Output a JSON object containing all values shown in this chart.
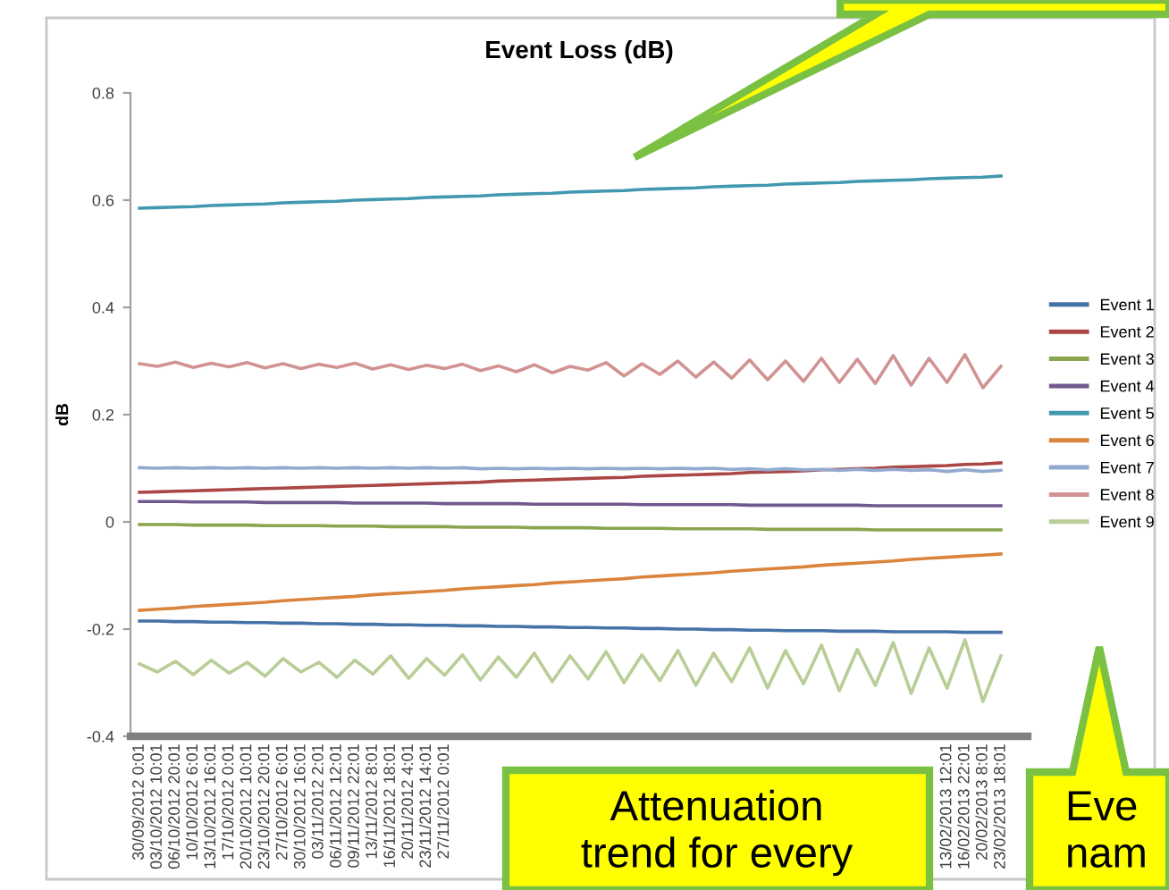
{
  "chart_data": {
    "type": "line",
    "title": "Event Loss (dB)",
    "ylabel": "dB",
    "categories": [
      "30/09/2012 0:01",
      "03/10/2012 10:01",
      "06/10/2012 20:01",
      "10/10/2012 6:01",
      "13/10/2012 16:01",
      "17/10/2012 0:01",
      "20/10/2012 10:01",
      "23/10/2012 20:01",
      "27/10/2012 6:01",
      "30/10/2012 16:01",
      "03/11/2012 2:01",
      "06/11/2012 12:01",
      "09/11/2012 22:01",
      "13/11/2012 8:01",
      "16/11/2012 18:01",
      "20/11/2012 4:01",
      "23/11/2012 14:01",
      "27/11/2012 0:01",
      null,
      null,
      null,
      null,
      null,
      null,
      null,
      null,
      null,
      null,
      null,
      null,
      null,
      null,
      null,
      null,
      null,
      null,
      null,
      null,
      null,
      null,
      null,
      null,
      null,
      null,
      null,
      "13/02/2013 12:01",
      "16/02/2013 22:01",
      "20/02/2013 8:01",
      "23/02/2013 18:01"
    ],
    "ylim": [
      -0.4,
      0.8
    ],
    "yticks": [
      -0.4,
      -0.2,
      0,
      0.2,
      0.4,
      0.6,
      0.8
    ],
    "grid": false,
    "legend": "right",
    "marker": "none",
    "line_style": "solid",
    "series": [
      {
        "name": "Event 1",
        "color": "#4572a7",
        "values": [
          -0.185,
          -0.185,
          -0.186,
          -0.186,
          -0.187,
          -0.187,
          -0.188,
          -0.188,
          -0.189,
          -0.189,
          -0.19,
          -0.19,
          -0.191,
          -0.191,
          -0.192,
          -0.192,
          -0.193,
          -0.193,
          -0.194,
          -0.194,
          -0.195,
          -0.195,
          -0.196,
          -0.196,
          -0.197,
          -0.197,
          -0.198,
          -0.198,
          -0.199,
          -0.199,
          -0.2,
          -0.2,
          -0.201,
          -0.201,
          -0.202,
          -0.202,
          -0.203,
          -0.203,
          -0.203,
          -0.204,
          -0.204,
          -0.204,
          -0.205,
          -0.205,
          -0.205,
          -0.205,
          -0.206,
          -0.206,
          -0.206
        ]
      },
      {
        "name": "Event 2",
        "color": "#aa4643",
        "values": [
          0.055,
          0.056,
          0.057,
          0.058,
          0.059,
          0.06,
          0.061,
          0.062,
          0.063,
          0.064,
          0.065,
          0.066,
          0.067,
          0.068,
          0.069,
          0.07,
          0.071,
          0.072,
          0.073,
          0.074,
          0.076,
          0.077,
          0.078,
          0.079,
          0.08,
          0.081,
          0.082,
          0.083,
          0.085,
          0.086,
          0.087,
          0.088,
          0.089,
          0.09,
          0.092,
          0.093,
          0.094,
          0.095,
          0.097,
          0.098,
          0.099,
          0.1,
          0.102,
          0.103,
          0.104,
          0.105,
          0.107,
          0.108,
          0.11
        ]
      },
      {
        "name": "Event 3",
        "color": "#89a54e",
        "values": [
          -0.005,
          -0.005,
          -0.005,
          -0.006,
          -0.006,
          -0.006,
          -0.006,
          -0.007,
          -0.007,
          -0.007,
          -0.007,
          -0.008,
          -0.008,
          -0.008,
          -0.009,
          -0.009,
          -0.009,
          -0.009,
          -0.01,
          -0.01,
          -0.01,
          -0.01,
          -0.011,
          -0.011,
          -0.011,
          -0.011,
          -0.012,
          -0.012,
          -0.012,
          -0.012,
          -0.013,
          -0.013,
          -0.013,
          -0.013,
          -0.013,
          -0.014,
          -0.014,
          -0.014,
          -0.014,
          -0.014,
          -0.014,
          -0.015,
          -0.015,
          -0.015,
          -0.015,
          -0.015,
          -0.015,
          -0.015,
          -0.015
        ]
      },
      {
        "name": "Event 4",
        "color": "#71588f",
        "values": [
          0.038,
          0.038,
          0.038,
          0.037,
          0.037,
          0.037,
          0.037,
          0.036,
          0.036,
          0.036,
          0.036,
          0.036,
          0.035,
          0.035,
          0.035,
          0.035,
          0.035,
          0.034,
          0.034,
          0.034,
          0.034,
          0.034,
          0.033,
          0.033,
          0.033,
          0.033,
          0.033,
          0.033,
          0.032,
          0.032,
          0.032,
          0.032,
          0.032,
          0.032,
          0.031,
          0.031,
          0.031,
          0.031,
          0.031,
          0.031,
          0.031,
          0.03,
          0.03,
          0.03,
          0.03,
          0.03,
          0.03,
          0.03,
          0.03
        ]
      },
      {
        "name": "Event 5",
        "color": "#4198af",
        "values": [
          0.585,
          0.586,
          0.587,
          0.588,
          0.59,
          0.591,
          0.592,
          0.593,
          0.595,
          0.596,
          0.597,
          0.598,
          0.6,
          0.601,
          0.602,
          0.603,
          0.605,
          0.606,
          0.607,
          0.608,
          0.61,
          0.611,
          0.612,
          0.613,
          0.615,
          0.616,
          0.617,
          0.618,
          0.62,
          0.621,
          0.622,
          0.623,
          0.625,
          0.626,
          0.627,
          0.628,
          0.63,
          0.631,
          0.632,
          0.633,
          0.635,
          0.636,
          0.637,
          0.638,
          0.64,
          0.641,
          0.642,
          0.643,
          0.645
        ]
      },
      {
        "name": "Event 6",
        "color": "#db843d",
        "values": [
          -0.165,
          -0.163,
          -0.161,
          -0.158,
          -0.156,
          -0.154,
          -0.152,
          -0.15,
          -0.147,
          -0.145,
          -0.143,
          -0.141,
          -0.139,
          -0.136,
          -0.134,
          -0.132,
          -0.13,
          -0.128,
          -0.125,
          -0.123,
          -0.121,
          -0.119,
          -0.117,
          -0.114,
          -0.112,
          -0.11,
          -0.108,
          -0.106,
          -0.103,
          -0.101,
          -0.099,
          -0.097,
          -0.095,
          -0.092,
          -0.09,
          -0.088,
          -0.086,
          -0.084,
          -0.081,
          -0.079,
          -0.077,
          -0.075,
          -0.073,
          -0.07,
          -0.068,
          -0.066,
          -0.064,
          -0.062,
          -0.06
        ]
      },
      {
        "name": "Event 7",
        "color": "#93a9cf",
        "values": [
          0.101,
          0.1,
          0.101,
          0.1,
          0.101,
          0.1,
          0.101,
          0.1,
          0.101,
          0.1,
          0.101,
          0.1,
          0.101,
          0.1,
          0.101,
          0.1,
          0.101,
          0.1,
          0.101,
          0.099,
          0.1,
          0.099,
          0.1,
          0.099,
          0.1,
          0.099,
          0.1,
          0.099,
          0.1,
          0.099,
          0.1,
          0.099,
          0.1,
          0.098,
          0.099,
          0.097,
          0.099,
          0.097,
          0.098,
          0.096,
          0.098,
          0.096,
          0.098,
          0.096,
          0.097,
          0.094,
          0.097,
          0.094,
          0.096
        ]
      },
      {
        "name": "Event 8",
        "color": "#d19392",
        "values": [
          0.295,
          0.29,
          0.298,
          0.288,
          0.296,
          0.289,
          0.297,
          0.287,
          0.295,
          0.286,
          0.294,
          0.288,
          0.296,
          0.285,
          0.293,
          0.284,
          0.292,
          0.286,
          0.294,
          0.282,
          0.291,
          0.28,
          0.293,
          0.278,
          0.29,
          0.283,
          0.297,
          0.272,
          0.295,
          0.275,
          0.3,
          0.27,
          0.298,
          0.268,
          0.302,
          0.265,
          0.3,
          0.262,
          0.305,
          0.26,
          0.303,
          0.258,
          0.31,
          0.255,
          0.305,
          0.26,
          0.312,
          0.25,
          0.29
        ]
      },
      {
        "name": "Event 9",
        "color": "#b9cd96",
        "values": [
          -0.265,
          -0.28,
          -0.26,
          -0.285,
          -0.258,
          -0.282,
          -0.262,
          -0.288,
          -0.255,
          -0.28,
          -0.262,
          -0.29,
          -0.258,
          -0.284,
          -0.25,
          -0.292,
          -0.255,
          -0.286,
          -0.248,
          -0.295,
          -0.252,
          -0.29,
          -0.245,
          -0.298,
          -0.25,
          -0.293,
          -0.242,
          -0.3,
          -0.248,
          -0.296,
          -0.24,
          -0.305,
          -0.245,
          -0.298,
          -0.235,
          -0.31,
          -0.24,
          -0.302,
          -0.23,
          -0.315,
          -0.238,
          -0.305,
          -0.225,
          -0.32,
          -0.235,
          -0.31,
          -0.22,
          -0.335,
          -0.25
        ]
      }
    ],
    "annotations": [
      "Attenuation\ntrend for every",
      "Eve\nnam"
    ]
  }
}
